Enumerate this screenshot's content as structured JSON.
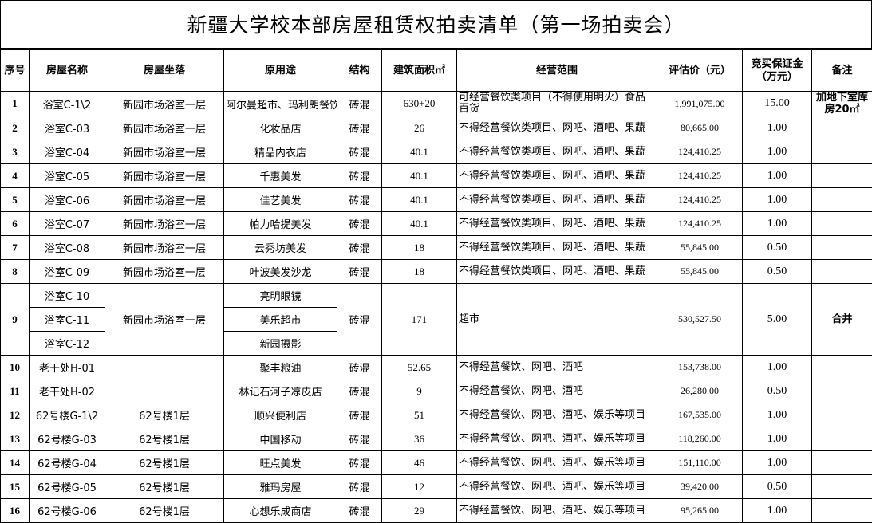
{
  "title": "新疆大学校本部房屋租赁权拍卖清单（第一场拍卖会）",
  "headers": [
    "序号",
    "房屋名称",
    "房屋坐落",
    "原用途",
    "结构",
    "建筑面积㎡",
    "经营范围",
    "评估价（元）",
    "竞买保证金（万元）",
    "备注"
  ],
  "rows": [
    {
      "no": "1",
      "name": "浴室C-1\\2",
      "loc": "新园市场浴室一层",
      "use": "阿尔曼超市、玛利朗餐饮",
      "struct": "砖混",
      "area": "630+20",
      "scope": "可经营餐饮类项目（不得使用明火）食品百货",
      "price": "1,991,075.00",
      "deposit": "15.00",
      "note": "加地下室库房20㎡"
    },
    {
      "no": "2",
      "name": "浴室C-03",
      "loc": "新园市场浴室一层",
      "use": "化妆品店",
      "struct": "砖混",
      "area": "26",
      "scope": "不得经营餐饮类项目、网吧、酒吧、果蔬",
      "price": "80,665.00",
      "deposit": "1.00",
      "note": ""
    },
    {
      "no": "3",
      "name": "浴室C-04",
      "loc": "新园市场浴室一层",
      "use": "精品内衣店",
      "struct": "砖混",
      "area": "40.1",
      "scope": "不得经营餐饮类项目、网吧、酒吧、果蔬",
      "price": "124,410.25",
      "deposit": "1.00",
      "note": ""
    },
    {
      "no": "4",
      "name": "浴室C-05",
      "loc": "新园市场浴室一层",
      "use": "千惠美发",
      "struct": "砖混",
      "area": "40.1",
      "scope": "不得经营餐饮类项目、网吧、酒吧、果蔬",
      "price": "124,410.25",
      "deposit": "1.00",
      "note": ""
    },
    {
      "no": "5",
      "name": "浴室C-06",
      "loc": "新园市场浴室一层",
      "use": "佳艺美发",
      "struct": "砖混",
      "area": "40.1",
      "scope": "不得经营餐饮类项目、网吧、酒吧、果蔬",
      "price": "124,410.25",
      "deposit": "1.00",
      "note": ""
    },
    {
      "no": "6",
      "name": "浴室C-07",
      "loc": "新园市场浴室一层",
      "use": "帕力哈提美发",
      "struct": "砖混",
      "area": "40.1",
      "scope": "不得经营餐饮类项目、网吧、酒吧、果蔬",
      "price": "124,410.25",
      "deposit": "1.00",
      "note": ""
    },
    {
      "no": "7",
      "name": "浴室C-08",
      "loc": "新园市场浴室一层",
      "use": "云秀坊美发",
      "struct": "砖混",
      "area": "18",
      "scope": "不得经营餐饮类项目、网吧、酒吧、果蔬",
      "price": "55,845.00",
      "deposit": "0.50",
      "note": ""
    },
    {
      "no": "8",
      "name": "浴室C-09",
      "loc": "新园市场浴室一层",
      "use": "叶波美发沙龙",
      "struct": "砖混",
      "area": "18",
      "scope": "不得经营餐饮类项目、网吧、酒吧、果蔬",
      "price": "55,845.00",
      "deposit": "0.50",
      "note": ""
    },
    {
      "no": "9",
      "names": [
        "浴室C-10",
        "浴室C-11",
        "浴室C-12"
      ],
      "loc": "新园市场浴室一层",
      "uses": [
        "亮明眼镜",
        "美乐超市",
        "新园摄影"
      ],
      "struct": "砖混",
      "area": "171",
      "scope": "超市",
      "price": "530,527.50",
      "deposit": "5.00",
      "note": "合并"
    },
    {
      "no": "10",
      "name": "老干处H-01",
      "loc": "",
      "use": "聚丰粮油",
      "struct": "砖混",
      "area": "52.65",
      "scope": "不得经营餐饮、网吧、酒吧",
      "price": "153,738.00",
      "deposit": "1.00",
      "note": ""
    },
    {
      "no": "11",
      "name": "老干处H-02",
      "loc": "",
      "use": "林记石河子凉皮店",
      "struct": "砖混",
      "area": "9",
      "scope": "不得经营餐饮、网吧、酒吧",
      "price": "26,280.00",
      "deposit": "0.50",
      "note": ""
    },
    {
      "no": "12",
      "name": "62号楼G-1\\2",
      "loc": "62号楼1层",
      "use": "顺兴便利店",
      "struct": "砖混",
      "area": "51",
      "scope": "不得经营餐饮、网吧、酒吧、娱乐等项目",
      "price": "167,535.00",
      "deposit": "1.00",
      "note": ""
    },
    {
      "no": "13",
      "name": "62号楼G-03",
      "loc": "62号楼1层",
      "use": "中国移动",
      "struct": "砖混",
      "area": "36",
      "scope": "不得经营餐饮、网吧、酒吧、娱乐等项目",
      "price": "118,260.00",
      "deposit": "1.00",
      "note": ""
    },
    {
      "no": "14",
      "name": "62号楼G-04",
      "loc": "62号楼1层",
      "use": "旺点美发",
      "struct": "砖混",
      "area": "46",
      "scope": "不得经营餐饮、网吧、酒吧、娱乐等项目",
      "price": "151,110.00",
      "deposit": "1.00",
      "note": ""
    },
    {
      "no": "15",
      "name": "62号楼G-05",
      "loc": "62号楼1层",
      "use": "雅玛房屋",
      "struct": "砖混",
      "area": "12",
      "scope": "不得经营餐饮、网吧、酒吧、娱乐等项目",
      "price": "39,420.00",
      "deposit": "0.50",
      "note": ""
    },
    {
      "no": "16",
      "name": "62号楼G-06",
      "loc": "62号楼1层",
      "use": "心想乐成商店",
      "struct": "砖混",
      "area": "29",
      "scope": "不得经营餐饮、网吧、酒吧、娱乐等项目",
      "price": "95,265.00",
      "deposit": "1.00",
      "note": ""
    }
  ]
}
